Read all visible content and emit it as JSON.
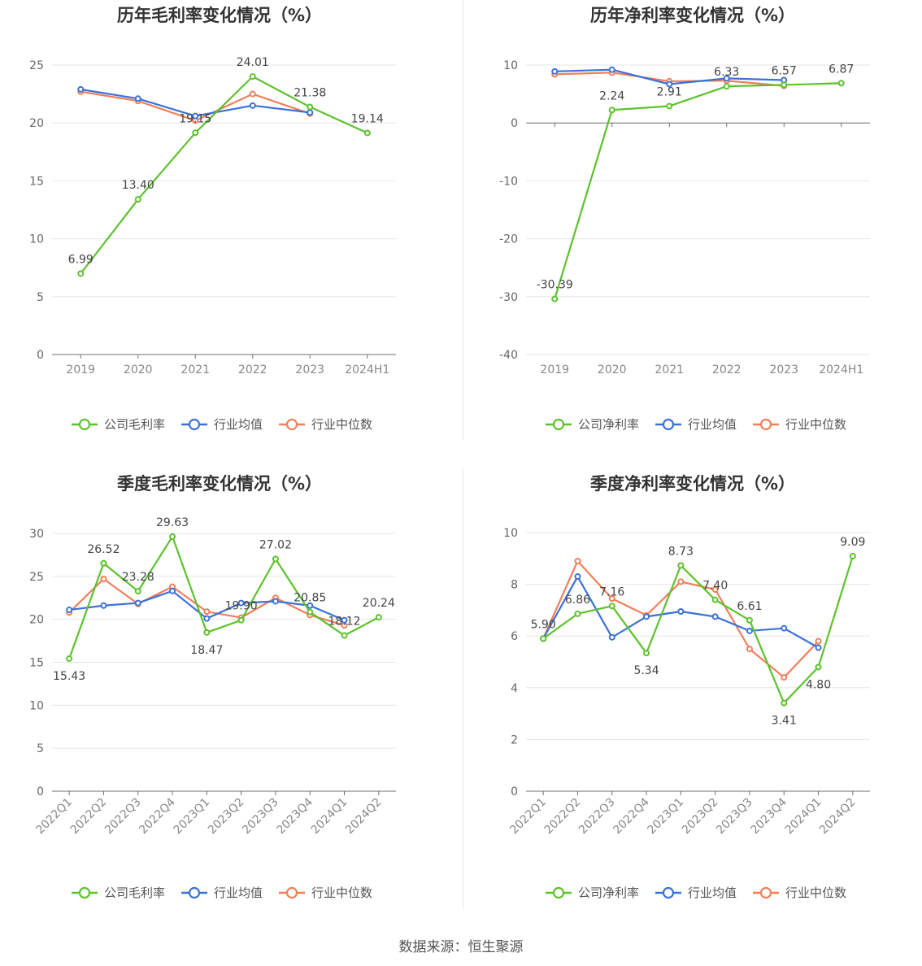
{
  "colors": {
    "company": "#5cc22c",
    "avg": "#3b72d8",
    "median": "#f07f5a"
  },
  "source": "数据来源：恒生聚源",
  "chart_data": [
    {
      "type": "line",
      "title": "历年毛利率变化情况（%）",
      "categories": [
        "2019",
        "2020",
        "2021",
        "2022",
        "2023",
        "2024H1"
      ],
      "ylim": [
        0,
        25
      ],
      "yticks": [
        0,
        5,
        10,
        15,
        20,
        25
      ],
      "legend_position": "bottom",
      "series": [
        {
          "name": "公司毛利率",
          "values": [
            6.99,
            13.4,
            19.15,
            24.01,
            21.38,
            19.14
          ],
          "labels": [
            "6.99",
            "13.40",
            "19.15",
            "24.01",
            "21.38",
            "19.14"
          ]
        },
        {
          "name": "行业均值",
          "values": [
            22.9,
            22.1,
            20.6,
            21.5,
            20.9,
            null
          ]
        },
        {
          "name": "行业中位数",
          "values": [
            22.7,
            21.9,
            20.2,
            22.5,
            20.8,
            null
          ]
        }
      ]
    },
    {
      "type": "line",
      "title": "历年净利率变化情况（%）",
      "categories": [
        "2019",
        "2020",
        "2021",
        "2022",
        "2023",
        "2024H1"
      ],
      "ylim": [
        -40,
        10
      ],
      "yticks": [
        -40,
        -30,
        -20,
        -10,
        0,
        10
      ],
      "legend_position": "bottom",
      "series": [
        {
          "name": "公司净利率",
          "values": [
            -30.39,
            2.24,
            2.91,
            6.33,
            6.57,
            6.87
          ],
          "labels": [
            "-30.39",
            "2.24",
            "2.91",
            "6.33",
            "6.57",
            "6.87"
          ]
        },
        {
          "name": "行业均值",
          "values": [
            8.9,
            9.2,
            6.7,
            7.7,
            7.4,
            null
          ]
        },
        {
          "name": "行业中位数",
          "values": [
            8.4,
            8.7,
            7.2,
            7.3,
            6.4,
            null
          ]
        }
      ]
    },
    {
      "type": "line",
      "title": "季度毛利率变化情况（%）",
      "categories": [
        "2022Q1",
        "2022Q2",
        "2022Q3",
        "2022Q4",
        "2023Q1",
        "2023Q2",
        "2023Q3",
        "2023Q4",
        "2024Q1",
        "2024Q2"
      ],
      "ylim": [
        0,
        30
      ],
      "yticks": [
        0,
        5,
        10,
        15,
        20,
        25,
        30
      ],
      "legend_position": "bottom",
      "series": [
        {
          "name": "公司毛利率",
          "values": [
            15.43,
            26.52,
            23.28,
            29.63,
            18.47,
            19.9,
            27.02,
            20.85,
            18.12,
            20.24
          ],
          "labels": [
            "15.43",
            "26.52",
            "23.28",
            "29.63",
            "18.47",
            "19.90",
            "27.02",
            "20.85",
            "18.12",
            "20.24"
          ]
        },
        {
          "name": "行业均值",
          "values": [
            21.1,
            21.6,
            21.9,
            23.3,
            20.1,
            21.9,
            22.1,
            21.6,
            19.9,
            null
          ]
        },
        {
          "name": "行业中位数",
          "values": [
            20.8,
            24.7,
            21.8,
            23.8,
            20.9,
            20.2,
            22.5,
            20.5,
            19.3,
            null
          ]
        }
      ]
    },
    {
      "type": "line",
      "title": "季度净利率变化情况（%）",
      "categories": [
        "2022Q1",
        "2022Q2",
        "2022Q3",
        "2022Q4",
        "2023Q1",
        "2023Q2",
        "2023Q3",
        "2023Q4",
        "2024Q1",
        "2024Q2"
      ],
      "ylim": [
        0,
        10
      ],
      "yticks": [
        0,
        2,
        4,
        6,
        8,
        10
      ],
      "legend_position": "bottom",
      "series": [
        {
          "name": "公司净利率",
          "values": [
            5.9,
            6.86,
            7.16,
            5.34,
            8.73,
            7.4,
            6.61,
            3.41,
            4.8,
            9.09
          ],
          "labels": [
            "5.90",
            "6.86",
            "7.16",
            "5.34",
            "8.73",
            "7.40",
            "6.61",
            "3.41",
            "4.80",
            "9.09"
          ]
        },
        {
          "name": "行业均值",
          "values": [
            5.9,
            8.3,
            5.95,
            6.75,
            6.95,
            6.75,
            6.2,
            6.3,
            5.55,
            null
          ]
        },
        {
          "name": "行业中位数",
          "values": [
            5.9,
            8.9,
            7.45,
            6.8,
            8.1,
            7.8,
            5.5,
            4.4,
            5.8,
            null
          ]
        }
      ]
    }
  ]
}
